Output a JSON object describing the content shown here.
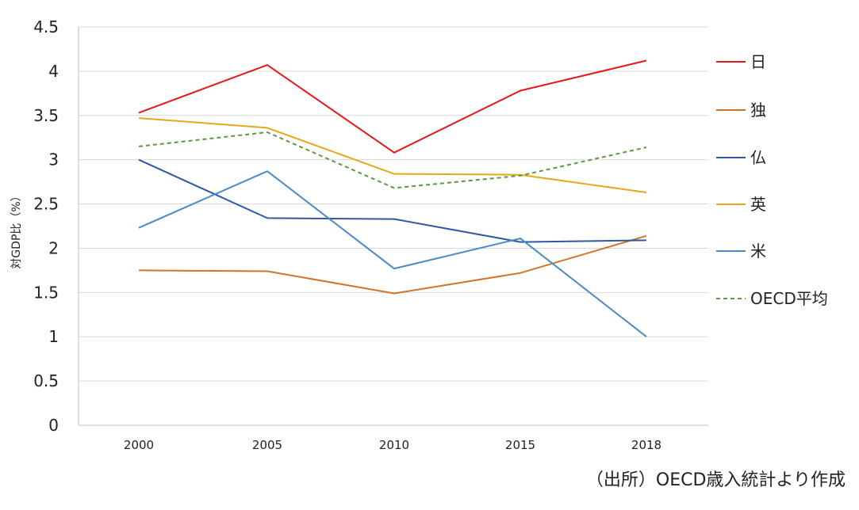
{
  "chart_data": {
    "type": "line",
    "categories": [
      "2000",
      "2005",
      "2010",
      "2015",
      "2018"
    ],
    "ylim": [
      0,
      4.5
    ],
    "yticks": [
      "0",
      "0.5",
      "1",
      "1.5",
      "2",
      "2.5",
      "3",
      "3.5",
      "4",
      "4.5"
    ],
    "ylabel": "対GDP比（%）",
    "grid": "horizontal",
    "legend_position": "right",
    "series": [
      {
        "name": "日",
        "color": "#E8161B",
        "dashed": false,
        "values": [
          3.53,
          4.07,
          3.08,
          3.78,
          4.12
        ]
      },
      {
        "name": "独",
        "color": "#D2732C",
        "dashed": false,
        "values": [
          1.75,
          1.74,
          1.49,
          1.72,
          2.14
        ]
      },
      {
        "name": "仏",
        "color": "#2F58A4",
        "dashed": false,
        "values": [
          3.0,
          2.34,
          2.33,
          2.07,
          2.09
        ]
      },
      {
        "name": "英",
        "color": "#E6A817",
        "dashed": false,
        "values": [
          3.47,
          3.36,
          2.84,
          2.83,
          2.63
        ]
      },
      {
        "name": "米",
        "color": "#4A8BC4",
        "dashed": false,
        "values": [
          2.23,
          2.87,
          1.77,
          2.11,
          1.0
        ]
      },
      {
        "name": "OECD平均",
        "color": "#5B9A3C",
        "dashed": true,
        "values": [
          3.15,
          3.31,
          2.68,
          2.82,
          3.14
        ]
      }
    ],
    "source_note": "（出所）OECD歳入統計より作成"
  }
}
